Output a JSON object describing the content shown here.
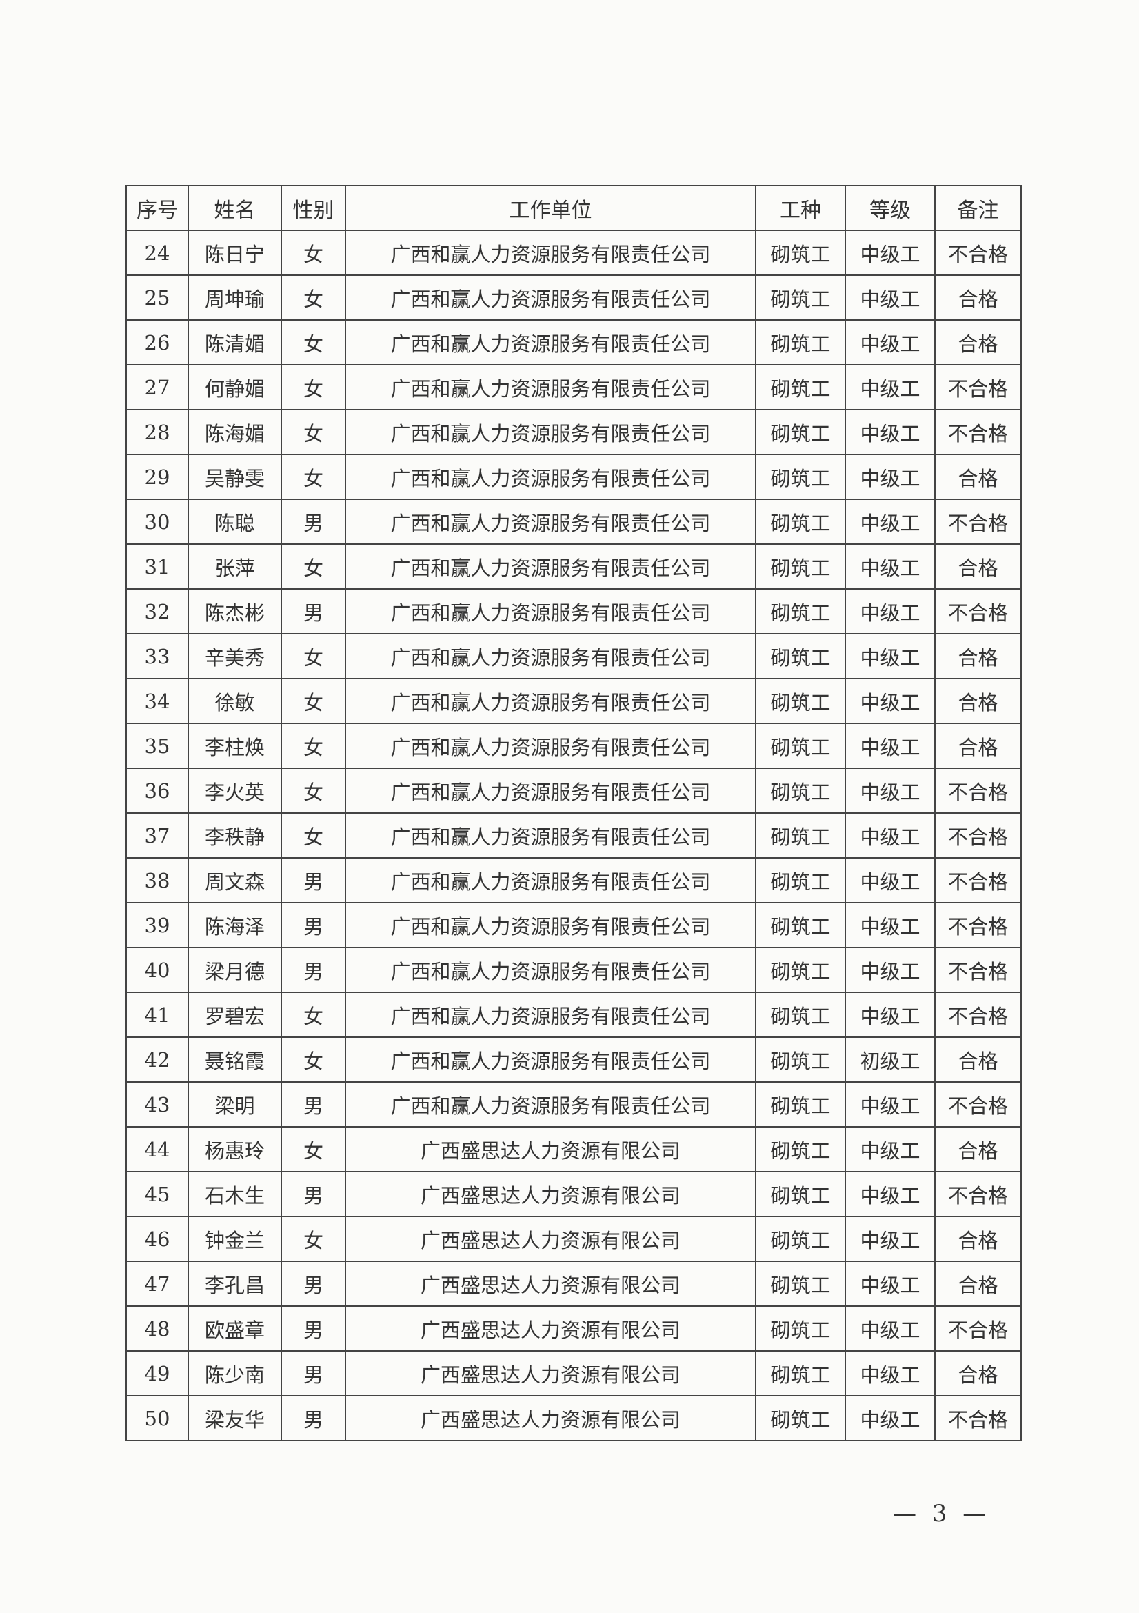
{
  "table": {
    "headers": [
      "序号",
      "姓名",
      "性别",
      "工作单位",
      "工种",
      "等级",
      "备注"
    ],
    "rows": [
      [
        "24",
        "陈日宁",
        "女",
        "广西和赢人力资源服务有限责任公司",
        "砌筑工",
        "中级工",
        "不合格"
      ],
      [
        "25",
        "周坤瑜",
        "女",
        "广西和赢人力资源服务有限责任公司",
        "砌筑工",
        "中级工",
        "合格"
      ],
      [
        "26",
        "陈清媚",
        "女",
        "广西和赢人力资源服务有限责任公司",
        "砌筑工",
        "中级工",
        "合格"
      ],
      [
        "27",
        "何静媚",
        "女",
        "广西和赢人力资源服务有限责任公司",
        "砌筑工",
        "中级工",
        "不合格"
      ],
      [
        "28",
        "陈海媚",
        "女",
        "广西和赢人力资源服务有限责任公司",
        "砌筑工",
        "中级工",
        "不合格"
      ],
      [
        "29",
        "吴静雯",
        "女",
        "广西和赢人力资源服务有限责任公司",
        "砌筑工",
        "中级工",
        "合格"
      ],
      [
        "30",
        "陈聪",
        "男",
        "广西和赢人力资源服务有限责任公司",
        "砌筑工",
        "中级工",
        "不合格"
      ],
      [
        "31",
        "张萍",
        "女",
        "广西和赢人力资源服务有限责任公司",
        "砌筑工",
        "中级工",
        "合格"
      ],
      [
        "32",
        "陈杰彬",
        "男",
        "广西和赢人力资源服务有限责任公司",
        "砌筑工",
        "中级工",
        "不合格"
      ],
      [
        "33",
        "辛美秀",
        "女",
        "广西和赢人力资源服务有限责任公司",
        "砌筑工",
        "中级工",
        "合格"
      ],
      [
        "34",
        "徐敏",
        "女",
        "广西和赢人力资源服务有限责任公司",
        "砌筑工",
        "中级工",
        "合格"
      ],
      [
        "35",
        "李柱焕",
        "女",
        "广西和赢人力资源服务有限责任公司",
        "砌筑工",
        "中级工",
        "合格"
      ],
      [
        "36",
        "李火英",
        "女",
        "广西和赢人力资源服务有限责任公司",
        "砌筑工",
        "中级工",
        "不合格"
      ],
      [
        "37",
        "李秩静",
        "女",
        "广西和赢人力资源服务有限责任公司",
        "砌筑工",
        "中级工",
        "不合格"
      ],
      [
        "38",
        "周文森",
        "男",
        "广西和赢人力资源服务有限责任公司",
        "砌筑工",
        "中级工",
        "不合格"
      ],
      [
        "39",
        "陈海泽",
        "男",
        "广西和赢人力资源服务有限责任公司",
        "砌筑工",
        "中级工",
        "不合格"
      ],
      [
        "40",
        "梁月德",
        "男",
        "广西和赢人力资源服务有限责任公司",
        "砌筑工",
        "中级工",
        "不合格"
      ],
      [
        "41",
        "罗碧宏",
        "女",
        "广西和赢人力资源服务有限责任公司",
        "砌筑工",
        "中级工",
        "不合格"
      ],
      [
        "42",
        "聂铭霞",
        "女",
        "广西和赢人力资源服务有限责任公司",
        "砌筑工",
        "初级工",
        "合格"
      ],
      [
        "43",
        "梁明",
        "男",
        "广西和赢人力资源服务有限责任公司",
        "砌筑工",
        "中级工",
        "不合格"
      ],
      [
        "44",
        "杨惠玲",
        "女",
        "广西盛思达人力资源有限公司",
        "砌筑工",
        "中级工",
        "合格"
      ],
      [
        "45",
        "石木生",
        "男",
        "广西盛思达人力资源有限公司",
        "砌筑工",
        "中级工",
        "不合格"
      ],
      [
        "46",
        "钟金兰",
        "女",
        "广西盛思达人力资源有限公司",
        "砌筑工",
        "中级工",
        "合格"
      ],
      [
        "47",
        "李孔昌",
        "男",
        "广西盛思达人力资源有限公司",
        "砌筑工",
        "中级工",
        "合格"
      ],
      [
        "48",
        "欧盛章",
        "男",
        "广西盛思达人力资源有限公司",
        "砌筑工",
        "中级工",
        "不合格"
      ],
      [
        "49",
        "陈少南",
        "男",
        "广西盛思达人力资源有限公司",
        "砌筑工",
        "中级工",
        "合格"
      ],
      [
        "50",
        "梁友华",
        "男",
        "广西盛思达人力资源有限公司",
        "砌筑工",
        "中级工",
        "不合格"
      ]
    ]
  },
  "footer": {
    "page_number": "— 3 —"
  }
}
